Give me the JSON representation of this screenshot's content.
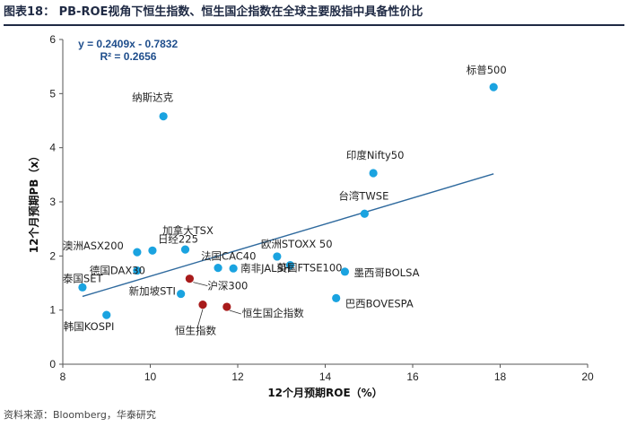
{
  "figure": {
    "title": "图表18： PB-ROE视角下恒生指数、恒生国企指数在全球主要股指中具备性价比",
    "source": "资料来源：Bloomberg，华泰研究"
  },
  "chart_data": {
    "type": "scatter",
    "xlabel": "12个月预期ROE（%）",
    "ylabel": "12个月预期PB（x）",
    "xlim": [
      8,
      20
    ],
    "ylim": [
      0,
      6
    ],
    "xticks": [
      8,
      10,
      12,
      14,
      16,
      18,
      20
    ],
    "yticks": [
      0,
      1,
      2,
      3,
      4,
      5,
      6
    ],
    "points": [
      {
        "label": "标普500",
        "x": 17.85,
        "y": 5.12,
        "color": "#1aa3e0"
      },
      {
        "label": "纳斯达克",
        "x": 10.3,
        "y": 4.58,
        "color": "#1aa3e0"
      },
      {
        "label": "印度Nifty50",
        "x": 15.1,
        "y": 3.53,
        "color": "#1aa3e0"
      },
      {
        "label": "台湾TWSE",
        "x": 14.9,
        "y": 2.78,
        "color": "#1aa3e0"
      },
      {
        "label": "加拿大TSX",
        "x": 10.8,
        "y": 2.12,
        "color": "#1aa3e0"
      },
      {
        "label": "日经225",
        "x": 10.05,
        "y": 2.1,
        "color": "#1aa3e0"
      },
      {
        "label": "澳洲ASX200",
        "x": 9.7,
        "y": 2.07,
        "color": "#1aa3e0"
      },
      {
        "label": "欧洲STOXX 50",
        "x": 12.9,
        "y": 1.99,
        "color": "#1aa3e0"
      },
      {
        "label": "英国FTSE100",
        "x": 13.2,
        "y": 1.83,
        "color": "#1aa3e0"
      },
      {
        "label": "法国CAC40",
        "x": 11.55,
        "y": 1.78,
        "color": "#1aa3e0"
      },
      {
        "label": "南非JALSH",
        "x": 11.9,
        "y": 1.77,
        "color": "#1aa3e0"
      },
      {
        "label": "德国DAX30",
        "x": 9.7,
        "y": 1.73,
        "color": "#1aa3e0"
      },
      {
        "label": "墨西哥BOLSA",
        "x": 14.45,
        "y": 1.71,
        "color": "#1aa3e0"
      },
      {
        "label": "泰国SET",
        "x": 8.45,
        "y": 1.42,
        "color": "#1aa3e0"
      },
      {
        "label": "新加坡STI",
        "x": 10.7,
        "y": 1.3,
        "color": "#1aa3e0"
      },
      {
        "label": "巴西BOVESPA",
        "x": 14.25,
        "y": 1.22,
        "color": "#1aa3e0"
      },
      {
        "label": "沪深300",
        "x": 10.9,
        "y": 1.58,
        "color": "#a81b1b"
      },
      {
        "label": "恒生指数",
        "x": 11.2,
        "y": 1.1,
        "color": "#a81b1b"
      },
      {
        "label": "恒生国企指数",
        "x": 11.75,
        "y": 1.06,
        "color": "#a81b1b"
      },
      {
        "label": "韩国KOSPI",
        "x": 9.0,
        "y": 0.91,
        "color": "#1aa3e0"
      }
    ],
    "trendline": {
      "equation": "y = 0.2409x - 0.7832",
      "r2": "R² = 0.2656",
      "slope": 0.2409,
      "intercept": -0.7832,
      "x_range": [
        8.45,
        17.85
      ],
      "color": "#2f6a9e"
    },
    "grid": false,
    "legend": "none"
  }
}
